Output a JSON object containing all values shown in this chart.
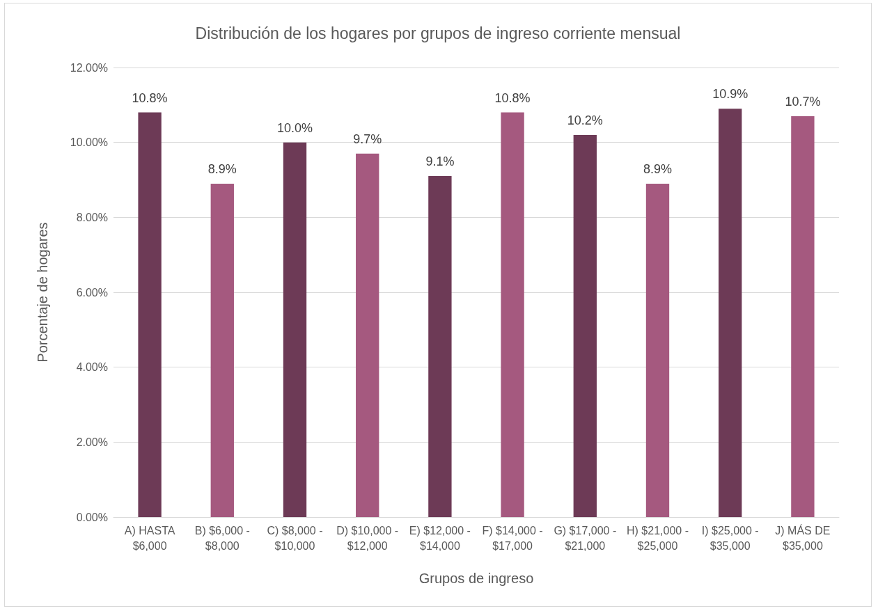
{
  "chart_data": {
    "type": "bar",
    "title": "Distribución de los hogares por grupos de ingreso corriente mensual",
    "xlabel": "Grupos de ingreso",
    "ylabel": "Porcentaje de hogares",
    "categories": [
      "A) HASTA $6,000",
      "B) $6,000 - $8,000",
      "C) $8,000 - $10,000",
      "D) $10,000 - $12,000",
      "E) $12,000 - $14,000",
      "F) $14,000 - $17,000",
      "G) $17,000 - $21,000",
      "H) $21,000 - $25,000",
      "I) $25,000 - $35,000",
      "J) MÁS DE $35,000"
    ],
    "values": [
      10.8,
      8.9,
      10.0,
      9.7,
      9.1,
      10.8,
      10.2,
      8.9,
      10.9,
      10.7
    ],
    "colors": [
      "#6d3a56",
      "#a5597f",
      "#6d3a56",
      "#a5597f",
      "#6d3a56",
      "#a5597f",
      "#6d3a56",
      "#a5597f",
      "#6d3a56",
      "#a5597f"
    ],
    "value_labels": [
      "10.8%",
      "8.9%",
      "10.0%",
      "9.7%",
      "9.1%",
      "10.8%",
      "10.2%",
      "8.9%",
      "10.9%",
      "10.7%"
    ],
    "ylim": [
      0,
      12
    ],
    "yticks": [
      {
        "value": 0,
        "label": "0.00%"
      },
      {
        "value": 2,
        "label": "2.00%"
      },
      {
        "value": 4,
        "label": "4.00%"
      },
      {
        "value": 6,
        "label": "6.00%"
      },
      {
        "value": 8,
        "label": "8.00%"
      },
      {
        "value": 10,
        "label": "10.00%"
      },
      {
        "value": 12,
        "label": "12.00%"
      }
    ],
    "grid": "y"
  }
}
